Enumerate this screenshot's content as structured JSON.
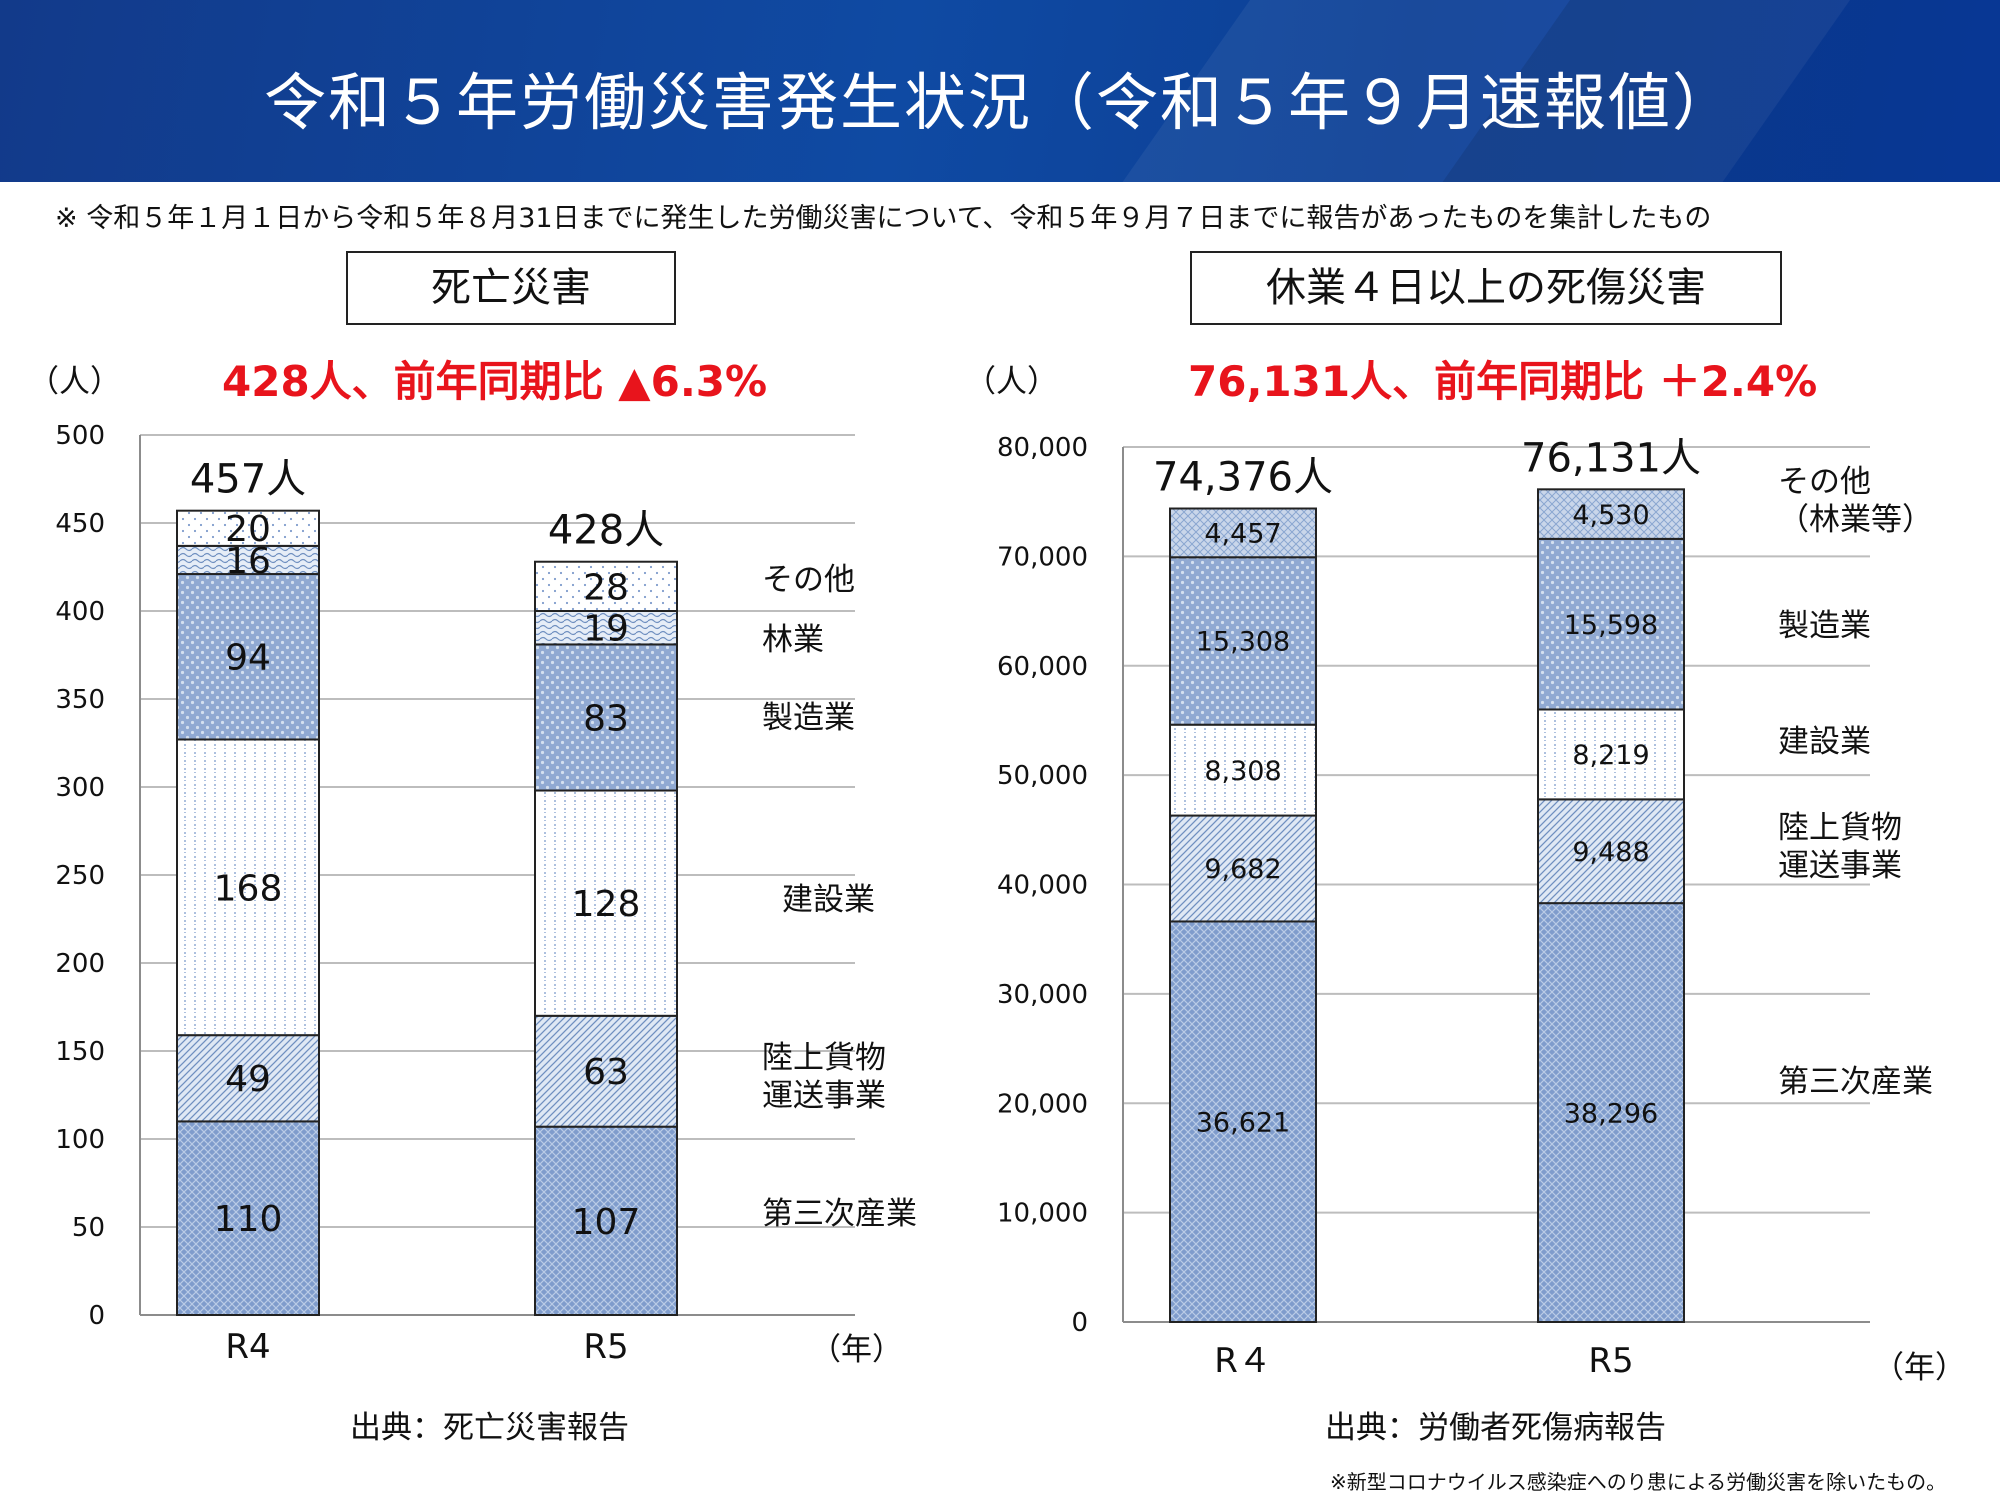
{
  "header": {
    "title": "令和５年労働災害発生状況（令和５年９月速報値）"
  },
  "note": "※ 令和５年１月１日から令和５年８月31日までに発生した労働災害について、令和５年９月７日までに報告があったものを集計したもの",
  "footnote": "※新型コロナウイルス感染症へのり患による労働災害を除いたもの。",
  "colors": {
    "header": "#0f4aa3",
    "bar_blue": "#7f9ccc",
    "headline_red": "#e8141c"
  },
  "chart_data": [
    {
      "type": "bar",
      "stacked": true,
      "title": "死亡災害",
      "headline": "428人、前年同期比 ▲6.3%",
      "ylabel": "（人）",
      "xlabel": "（年）",
      "source": "出典：死亡災害報告",
      "ylim": [
        0,
        500
      ],
      "yticks": [
        0,
        50,
        100,
        150,
        200,
        250,
        300,
        350,
        400,
        450,
        500
      ],
      "ytick_labels": [
        "0",
        "50",
        "100",
        "150",
        "200",
        "250",
        "300",
        "350",
        "400",
        "450",
        "500"
      ],
      "categories": [
        "R4",
        "R5"
      ],
      "totals": [
        "457人",
        "428人"
      ],
      "series": [
        {
          "name": "第三次産業",
          "values": [
            110,
            107
          ],
          "labels": [
            "110",
            "107"
          ]
        },
        {
          "name": "陸上貨物\n運送事業",
          "values": [
            49,
            63
          ],
          "labels": [
            "49",
            "63"
          ]
        },
        {
          "name": "建設業",
          "values": [
            168,
            128
          ],
          "labels": [
            "168",
            "128"
          ]
        },
        {
          "name": "製造業",
          "values": [
            94,
            83
          ],
          "labels": [
            "94",
            "83"
          ]
        },
        {
          "name": "林業",
          "values": [
            16,
            19
          ],
          "labels": [
            "16",
            "19"
          ]
        },
        {
          "name": "その他",
          "values": [
            20,
            28
          ],
          "labels": [
            "20",
            "28"
          ]
        }
      ]
    },
    {
      "type": "bar",
      "stacked": true,
      "title": "休業４日以上の死傷災害",
      "headline": "76,131人、前年同期比 ＋2.4%",
      "ylabel": "（人）",
      "xlabel": "（年）",
      "source": "出典：労働者死傷病報告",
      "ylim": [
        0,
        80000
      ],
      "yticks": [
        0,
        10000,
        20000,
        30000,
        40000,
        50000,
        60000,
        70000,
        80000
      ],
      "ytick_labels": [
        "0",
        "10,000",
        "20,000",
        "30,000",
        "40,000",
        "50,000",
        "60,000",
        "70,000",
        "80,000"
      ],
      "categories": [
        "R４",
        "R5"
      ],
      "totals": [
        "74,376人",
        "76,131人"
      ],
      "series": [
        {
          "name": "第三次産業",
          "values": [
            36621,
            38296
          ],
          "labels": [
            "36,621",
            "38,296"
          ]
        },
        {
          "name": "陸上貨物\n運送事業",
          "values": [
            9682,
            9488
          ],
          "labels": [
            "9,682",
            "9,488"
          ]
        },
        {
          "name": "建設業",
          "values": [
            8308,
            8219
          ],
          "labels": [
            "8,308",
            "8,219"
          ]
        },
        {
          "name": "製造業",
          "values": [
            15308,
            15598
          ],
          "labels": [
            "15,308",
            "15,598"
          ]
        },
        {
          "name": "その他\n（林業等）",
          "values": [
            4457,
            4530
          ],
          "labels": [
            "4,457",
            "4,530"
          ]
        }
      ]
    }
  ]
}
